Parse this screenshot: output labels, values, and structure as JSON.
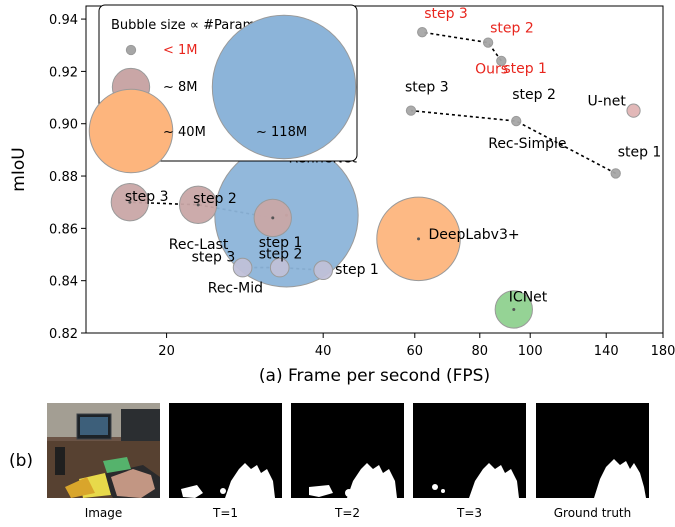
{
  "chart_data": {
    "type": "scatter",
    "x_scale": "log",
    "xlabel": "(a) Frame per second (FPS)",
    "ylabel": "mIoU",
    "xlim": [
      14,
      180
    ],
    "ylim": [
      0.82,
      0.945
    ],
    "x_ticks": [
      20,
      40,
      60,
      80,
      100,
      140,
      180
    ],
    "y_ticks": [
      0.82,
      0.84,
      0.86,
      0.88,
      0.9,
      0.92,
      0.94
    ],
    "grid": false,
    "legend": {
      "title": "Bubble size ∝ #Param (Million)",
      "placement": "top-left",
      "entries": [
        {
          "label": "< 1M",
          "params": 0.5,
          "color": "#a6a6a6",
          "label_color": "#e8261e"
        },
        {
          "label": "~ 8M",
          "params": 8,
          "color": "#c9a6a6",
          "label_color": "#000000"
        },
        {
          "label": "~ 40M",
          "params": 40,
          "color": "#fdb57d",
          "label_color": "#000000"
        },
        {
          "label": "~ 118M",
          "params": 118,
          "color": "#8cb4d9",
          "label_color": "#000000"
        }
      ]
    },
    "series": [
      {
        "name": "Ours",
        "color": "#a6a6a6",
        "params": 0.5,
        "label_color": "#e8261e",
        "connected": true,
        "points": [
          {
            "label": "step 1",
            "x": 88,
            "y": 0.924
          },
          {
            "label": "step 2",
            "x": 83,
            "y": 0.931
          },
          {
            "label": "step 3",
            "x": 62,
            "y": 0.935
          }
        ]
      },
      {
        "name": "Rec-Simple",
        "color": "#a6a6a6",
        "params": 0.5,
        "label_color": "#000000",
        "connected": true,
        "points": [
          {
            "label": "step 1",
            "x": 146,
            "y": 0.881
          },
          {
            "label": "step 2",
            "x": 94,
            "y": 0.901
          },
          {
            "label": "step 3",
            "x": 59,
            "y": 0.905
          }
        ]
      },
      {
        "name": "Rec-Last",
        "color": "#c9a6a6",
        "params": 8,
        "label_color": "#000000",
        "connected": true,
        "points": [
          {
            "label": "step 1",
            "x": 32,
            "y": 0.864
          },
          {
            "label": "step 2",
            "x": 23,
            "y": 0.869
          },
          {
            "label": "step 3",
            "x": 17,
            "y": 0.87
          }
        ]
      },
      {
        "name": "Rec-Mid",
        "color": "#c0c0d8",
        "params": 2,
        "label_color": "#000000",
        "connected": true,
        "points": [
          {
            "label": "step 1",
            "x": 40,
            "y": 0.844
          },
          {
            "label": "step 2",
            "x": 33,
            "y": 0.845
          },
          {
            "label": "step 3",
            "x": 28,
            "y": 0.845
          }
        ]
      },
      {
        "name": "RefineNet",
        "color": "#8cb4d9",
        "params": 118,
        "label_color": "#000000",
        "connected": false,
        "points": [
          {
            "label": "RefineNet",
            "x": 34,
            "y": 0.865
          }
        ]
      },
      {
        "name": "DeepLabv3+",
        "color": "#fdb57d",
        "params": 40,
        "label_color": "#000000",
        "connected": false,
        "points": [
          {
            "label": "DeepLabv3+",
            "x": 61,
            "y": 0.856
          }
        ]
      },
      {
        "name": "ICNet",
        "color": "#8fd18f",
        "params": 8,
        "label_color": "#000000",
        "connected": false,
        "points": [
          {
            "label": "ICNet",
            "x": 93,
            "y": 0.829
          }
        ]
      },
      {
        "name": "U-net",
        "color": "#e0b4b4",
        "params": 1,
        "label_color": "#000000",
        "connected": false,
        "points": [
          {
            "label": "U-net",
            "x": 158,
            "y": 0.905
          }
        ]
      }
    ]
  },
  "panel_b": {
    "label": "(b)",
    "images": [
      {
        "caption": "Image",
        "kind": "photo"
      },
      {
        "caption": "T=1",
        "kind": "mask",
        "variant": 1
      },
      {
        "caption": "T=2",
        "kind": "mask",
        "variant": 2
      },
      {
        "caption": "T=3",
        "kind": "mask",
        "variant": 3
      },
      {
        "caption": "Ground truth",
        "kind": "mask",
        "variant": 4
      }
    ]
  }
}
